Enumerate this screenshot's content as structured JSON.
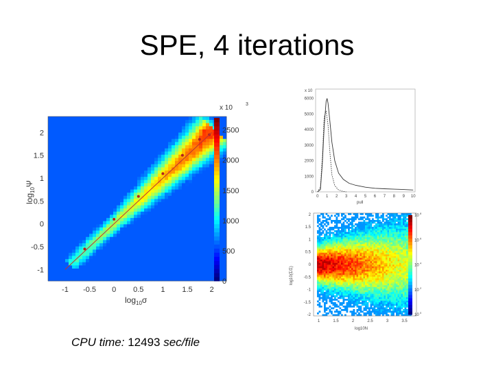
{
  "slide": {
    "title": "SPE, 4 iterations",
    "caption_label": "CPU time:",
    "caption_value": "12493",
    "caption_unit": "sec/file"
  },
  "chart_data": [
    {
      "type": "heatmap",
      "title": "",
      "xlabel": "log10σ",
      "ylabel": "log10Ψ",
      "xlim": [
        -1.35,
        2.3
      ],
      "ylim": [
        -1.25,
        2.35
      ],
      "xticks": [
        "-1",
        "-0.5",
        "0",
        "0.5",
        "1",
        "1.5",
        "2"
      ],
      "yticks": [
        "-1",
        "-0.5",
        "0",
        "0.5",
        "1",
        "1.5",
        "2"
      ],
      "colorbar": {
        "multiplier": "x 10",
        "exponent": "3",
        "ticks": [
          "0",
          "500",
          "1000",
          "1500",
          "2000",
          "2500"
        ],
        "range": [
          0,
          2700
        ]
      },
      "ridge_points": [
        {
          "x": -0.6,
          "y": -0.55
        },
        {
          "x": 0.0,
          "y": 0.1
        },
        {
          "x": 0.5,
          "y": 0.6
        },
        {
          "x": 1.0,
          "y": 1.1
        },
        {
          "x": 1.4,
          "y": 1.5
        },
        {
          "x": 1.75,
          "y": 1.85
        },
        {
          "x": 1.95,
          "y": 1.95
        }
      ],
      "fit_line": {
        "x": [
          -1.0,
          2.0
        ],
        "y": [
          -1.0,
          2.0
        ]
      },
      "grid": false,
      "legend": "none"
    },
    {
      "type": "line",
      "title": "",
      "xlabel": "pull",
      "ylabel": "",
      "multiplier": "x 10",
      "xlim": [
        -0.2,
        10.2
      ],
      "ylim": [
        0,
        6600
      ],
      "xticks": [
        "0",
        "1",
        "2",
        "3",
        "4",
        "5",
        "6",
        "7",
        "8",
        "9",
        "10"
      ],
      "yticks": [
        "0",
        "1000",
        "2000",
        "3000",
        "4000",
        "5000",
        "6000"
      ],
      "series": [
        {
          "style": "solid",
          "x": [
            0,
            0.3,
            0.5,
            0.7,
            0.9,
            1.0,
            1.1,
            1.3,
            1.5,
            1.8,
            2.2,
            2.7,
            3.3,
            4.0,
            5.0,
            6.0,
            7.0,
            8.0,
            9.0,
            10.0
          ],
          "y": [
            0,
            150,
            1800,
            4200,
            5800,
            6000,
            5700,
            4500,
            3200,
            2000,
            1200,
            800,
            550,
            420,
            300,
            230,
            200,
            170,
            150,
            120
          ]
        },
        {
          "style": "dotted",
          "x": [
            0,
            0.3,
            0.5,
            0.7,
            0.9,
            1.1,
            1.3,
            1.5,
            1.8,
            2.2,
            2.6,
            3.0
          ],
          "y": [
            0,
            300,
            2200,
            4800,
            5200,
            4300,
            2500,
            1100,
            400,
            120,
            40,
            0
          ]
        }
      ],
      "grid": false,
      "legend": "none"
    },
    {
      "type": "heatmap",
      "title": "",
      "xlabel": "log10N",
      "ylabel": "log10(Σ/Σ)",
      "xlim": [
        0.85,
        3.85
      ],
      "ylim": [
        -2.05,
        2.05
      ],
      "xticks": [
        "1",
        "1.5",
        "2",
        "2.5",
        "3",
        "3.5"
      ],
      "yticks": [
        "-2",
        "-1.5",
        "-1",
        "-0.5",
        "0",
        "0.5",
        "1",
        "1.5",
        "2"
      ],
      "colorbar": {
        "scale": "log",
        "ticks": [
          "10",
          "10",
          "10",
          "10",
          "10"
        ],
        "exponents": [
          "0",
          "2",
          "4",
          "6",
          "8"
        ]
      },
      "band_center_y": 0.0,
      "grid": false,
      "legend": "none"
    }
  ]
}
